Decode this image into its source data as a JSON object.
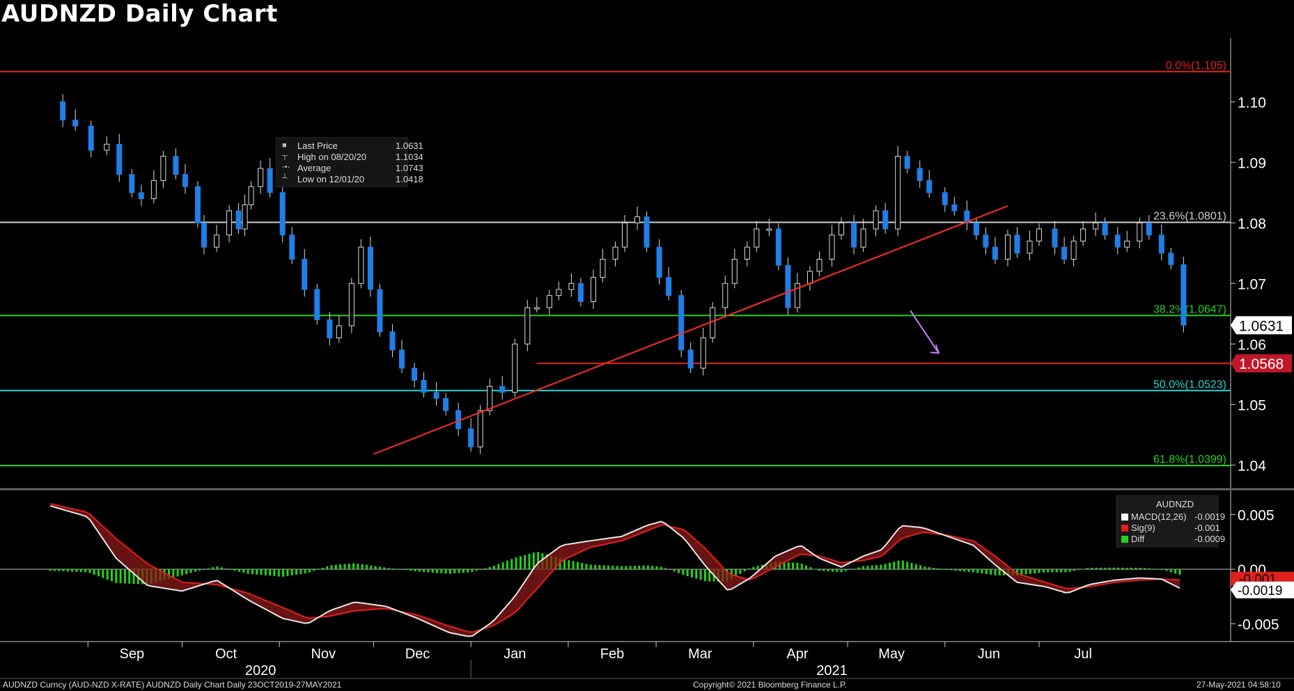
{
  "title": "AUDNZD Daily Chart",
  "chart_data": {
    "type": "candlestick",
    "x_axis": {
      "months": [
        "Sep",
        "Oct",
        "Nov",
        "Dec",
        "Jan",
        "Feb",
        "Mar",
        "Apr",
        "May",
        "Jun",
        "Jul"
      ],
      "years": [
        "2020",
        "2021"
      ]
    },
    "y_axis": {
      "ticks": [
        "1.10",
        "1.09",
        "1.08",
        "1.07",
        "1.06",
        "1.05",
        "1.04"
      ],
      "ylim": [
        1.0375,
        1.1105
      ]
    },
    "fibonacci_levels": [
      {
        "label": "0.0%(1.105)",
        "value": 1.105,
        "color": "#e0201c"
      },
      {
        "label": "23.6%(1.0801)",
        "value": 1.0801,
        "color": "#cfcfcf"
      },
      {
        "label": "38.2%(1.0647)",
        "value": 1.0647,
        "color": "#22d31a"
      },
      {
        "label": "50.0%(1.0523)",
        "value": 1.0523,
        "color": "#1fd6d6"
      },
      {
        "label": "61.8%(1.0399)",
        "value": 1.0399,
        "color": "#22d31a"
      }
    ],
    "support_level": {
      "value": 1.0568,
      "label": "1.0568"
    },
    "last_price": {
      "value": 1.0631,
      "label": "1.0631"
    },
    "trendline": {
      "from": {
        "date": "2020-12-01",
        "value": 1.0418
      },
      "to": {
        "date": "2021-06-21",
        "value": 1.0828
      }
    },
    "projection_arrow": {
      "from": {
        "date": "2021-05-21",
        "value": 1.0655
      },
      "to": {
        "date": "2021-05-30",
        "value": 1.0585
      }
    },
    "legend": [
      {
        "label": "Last Price",
        "value": "1.0631"
      },
      {
        "label": "High on 08/20/20",
        "value": "1.1034"
      },
      {
        "label": "Average",
        "value": "1.0743"
      },
      {
        "label": "Low on 12/01/20",
        "value": "1.0418"
      }
    ],
    "price_path": [
      [
        "2020-08-20",
        1.1
      ],
      [
        "2020-08-24",
        1.097
      ],
      [
        "2020-08-28",
        1.096
      ],
      [
        "2020-09-02",
        1.092
      ],
      [
        "2020-09-07",
        1.093
      ],
      [
        "2020-09-11",
        1.088
      ],
      [
        "2020-09-15",
        1.085
      ],
      [
        "2020-09-18",
        1.084
      ],
      [
        "2020-09-22",
        1.087
      ],
      [
        "2020-09-25",
        1.091
      ],
      [
        "2020-09-29",
        1.088
      ],
      [
        "2020-10-02",
        1.086
      ],
      [
        "2020-10-06",
        1.08
      ],
      [
        "2020-10-08",
        1.076
      ],
      [
        "2020-10-12",
        1.078
      ],
      [
        "2020-10-16",
        1.082
      ],
      [
        "2020-10-19",
        1.079
      ],
      [
        "2020-10-21",
        1.083
      ],
      [
        "2020-10-23",
        1.086
      ],
      [
        "2020-10-26",
        1.089
      ],
      [
        "2020-10-29",
        1.085
      ],
      [
        "2020-11-02",
        1.078
      ],
      [
        "2020-11-05",
        1.074
      ],
      [
        "2020-11-09",
        1.069
      ],
      [
        "2020-11-13",
        1.064
      ],
      [
        "2020-11-17",
        1.061
      ],
      [
        "2020-11-20",
        1.063
      ],
      [
        "2020-11-24",
        1.07
      ],
      [
        "2020-11-27",
        1.076
      ],
      [
        "2020-11-30",
        1.069
      ],
      [
        "2020-12-03",
        1.062
      ],
      [
        "2020-12-07",
        1.059
      ],
      [
        "2020-12-10",
        1.056
      ],
      [
        "2020-12-14",
        1.054
      ],
      [
        "2020-12-17",
        1.052
      ],
      [
        "2020-12-21",
        1.051
      ],
      [
        "2020-12-24",
        1.049
      ],
      [
        "2020-12-28",
        1.046
      ],
      [
        "2021-01-01",
        1.043
      ],
      [
        "2021-01-04",
        1.049
      ],
      [
        "2021-01-07",
        1.053
      ],
      [
        "2021-01-11",
        1.052
      ],
      [
        "2021-01-15",
        1.06
      ],
      [
        "2021-01-19",
        1.066
      ],
      [
        "2021-01-22",
        1.066
      ],
      [
        "2021-01-26",
        1.068
      ],
      [
        "2021-01-29",
        1.069
      ],
      [
        "2021-02-02",
        1.07
      ],
      [
        "2021-02-05",
        1.067
      ],
      [
        "2021-02-09",
        1.071
      ],
      [
        "2021-02-12",
        1.074
      ],
      [
        "2021-02-16",
        1.076
      ],
      [
        "2021-02-19",
        1.08
      ],
      [
        "2021-02-23",
        1.081
      ],
      [
        "2021-02-26",
        1.076
      ],
      [
        "2021-03-02",
        1.071
      ],
      [
        "2021-03-05",
        1.068
      ],
      [
        "2021-03-09",
        1.059
      ],
      [
        "2021-03-12",
        1.056
      ],
      [
        "2021-03-16",
        1.061
      ],
      [
        "2021-03-19",
        1.066
      ],
      [
        "2021-03-23",
        1.07
      ],
      [
        "2021-03-26",
        1.074
      ],
      [
        "2021-03-30",
        1.076
      ],
      [
        "2021-04-02",
        1.079
      ],
      [
        "2021-04-06",
        1.079
      ],
      [
        "2021-04-09",
        1.073
      ],
      [
        "2021-04-12",
        1.066
      ],
      [
        "2021-04-15",
        1.07
      ],
      [
        "2021-04-19",
        1.072
      ],
      [
        "2021-04-22",
        1.074
      ],
      [
        "2021-04-26",
        1.078
      ],
      [
        "2021-04-29",
        1.08
      ],
      [
        "2021-05-03",
        1.076
      ],
      [
        "2021-05-06",
        1.079
      ],
      [
        "2021-05-10",
        1.082
      ],
      [
        "2021-05-13",
        1.079
      ],
      [
        "2021-05-17",
        1.091
      ],
      [
        "2021-05-20",
        1.089
      ],
      [
        "2021-05-24",
        1.087
      ],
      [
        "2021-05-27",
        1.085
      ],
      [
        "2021-06-01",
        1.083
      ],
      [
        "2021-06-04",
        1.082
      ],
      [
        "2021-06-08",
        1.08
      ],
      [
        "2021-06-11",
        1.078
      ],
      [
        "2021-06-14",
        1.076
      ],
      [
        "2021-06-17",
        1.074
      ],
      [
        "2021-06-21",
        1.078
      ],
      [
        "2021-06-24",
        1.075
      ],
      [
        "2021-06-28",
        1.077
      ],
      [
        "2021-07-01",
        1.079
      ],
      [
        "2021-07-06",
        1.076
      ],
      [
        "2021-07-09",
        1.074
      ],
      [
        "2021-07-12",
        1.077
      ],
      [
        "2021-07-15",
        1.079
      ],
      [
        "2021-07-19",
        1.08
      ],
      [
        "2021-07-22",
        1.078
      ],
      [
        "2021-07-26",
        1.076
      ],
      [
        "2021-07-29",
        1.077
      ],
      [
        "2021-08-02",
        1.08
      ],
      [
        "2021-08-05",
        1.078
      ],
      [
        "2021-08-09",
        1.075
      ],
      [
        "2021-08-12",
        1.0731
      ],
      [
        "2021-08-16",
        1.0631
      ]
    ],
    "macd_panel": {
      "ticks": [
        "0.005",
        "0.00",
        "-0.005"
      ],
      "ylim": [
        -0.0065,
        0.0072
      ],
      "legend_title": "AUDNZD",
      "series": [
        {
          "name": "MACD(12,26)",
          "value": "-0.0019",
          "color": "#ffffff"
        },
        {
          "name": "Sig(9)",
          "value": "-0.001",
          "color": "#e0201c"
        },
        {
          "name": "Diff",
          "value": "-0.0009",
          "color": "#22d31a"
        }
      ],
      "badges": [
        "-0.001",
        "-0.0019"
      ],
      "macd_path": [
        [
          "2020-08-20",
          0.0058
        ],
        [
          "2020-09-01",
          0.0048
        ],
        [
          "2020-09-10",
          0.001
        ],
        [
          "2020-09-20",
          -0.0015
        ],
        [
          "2020-10-01",
          -0.002
        ],
        [
          "2020-10-12",
          -0.001
        ],
        [
          "2020-10-22",
          -0.0028
        ],
        [
          "2020-11-02",
          -0.0045
        ],
        [
          "2020-11-10",
          -0.005
        ],
        [
          "2020-11-17",
          -0.0038
        ],
        [
          "2020-11-25",
          -0.003
        ],
        [
          "2020-12-05",
          -0.0034
        ],
        [
          "2020-12-15",
          -0.0045
        ],
        [
          "2020-12-25",
          -0.0058
        ],
        [
          "2021-01-01",
          -0.0062
        ],
        [
          "2021-01-08",
          -0.0048
        ],
        [
          "2021-01-15",
          -0.0025
        ],
        [
          "2021-01-22",
          0.0005
        ],
        [
          "2021-01-30",
          0.0022
        ],
        [
          "2021-02-08",
          0.0026
        ],
        [
          "2021-02-18",
          0.003
        ],
        [
          "2021-02-26",
          0.004
        ],
        [
          "2021-03-03",
          0.0044
        ],
        [
          "2021-03-10",
          0.0028
        ],
        [
          "2021-03-17",
          0.0002
        ],
        [
          "2021-03-24",
          -0.002
        ],
        [
          "2021-03-31",
          -0.0008
        ],
        [
          "2021-04-08",
          0.0012
        ],
        [
          "2021-04-16",
          0.0022
        ],
        [
          "2021-04-22",
          0.001
        ],
        [
          "2021-04-29",
          0.0002
        ],
        [
          "2021-05-06",
          0.0012
        ],
        [
          "2021-05-12",
          0.0018
        ],
        [
          "2021-05-18",
          0.004
        ],
        [
          "2021-05-25",
          0.0038
        ],
        [
          "2021-06-02",
          0.003
        ],
        [
          "2021-06-10",
          0.0022
        ],
        [
          "2021-06-17",
          0.0004
        ],
        [
          "2021-06-24",
          -0.0012
        ],
        [
          "2021-07-03",
          -0.0016
        ],
        [
          "2021-07-10",
          -0.0022
        ],
        [
          "2021-07-17",
          -0.0014
        ],
        [
          "2021-07-25",
          -0.001
        ],
        [
          "2021-08-02",
          -0.0008
        ],
        [
          "2021-08-09",
          -0.0009
        ],
        [
          "2021-08-16",
          -0.0019
        ]
      ],
      "signal_path": [
        [
          "2020-08-20",
          0.006
        ],
        [
          "2020-09-01",
          0.0052
        ],
        [
          "2020-09-10",
          0.0028
        ],
        [
          "2020-09-20",
          0.0005
        ],
        [
          "2020-10-01",
          -0.0012
        ],
        [
          "2020-10-12",
          -0.0014
        ],
        [
          "2020-10-22",
          -0.0022
        ],
        [
          "2020-11-02",
          -0.0035
        ],
        [
          "2020-11-10",
          -0.0045
        ],
        [
          "2020-11-17",
          -0.0043
        ],
        [
          "2020-11-25",
          -0.0038
        ],
        [
          "2020-12-05",
          -0.0036
        ],
        [
          "2020-12-15",
          -0.0042
        ],
        [
          "2020-12-25",
          -0.0052
        ],
        [
          "2021-01-01",
          -0.0058
        ],
        [
          "2021-01-08",
          -0.0052
        ],
        [
          "2021-01-15",
          -0.004
        ],
        [
          "2021-01-22",
          -0.0018
        ],
        [
          "2021-01-30",
          0.0008
        ],
        [
          "2021-02-08",
          0.002
        ],
        [
          "2021-02-18",
          0.0026
        ],
        [
          "2021-02-26",
          0.0035
        ],
        [
          "2021-03-03",
          0.0041
        ],
        [
          "2021-03-10",
          0.0036
        ],
        [
          "2021-03-17",
          0.0018
        ],
        [
          "2021-03-24",
          -0.0004
        ],
        [
          "2021-03-31",
          -0.001
        ],
        [
          "2021-04-08",
          0.0002
        ],
        [
          "2021-04-16",
          0.0014
        ],
        [
          "2021-04-22",
          0.0012
        ],
        [
          "2021-04-29",
          0.0006
        ],
        [
          "2021-05-06",
          0.0008
        ],
        [
          "2021-05-12",
          0.0012
        ],
        [
          "2021-05-18",
          0.0028
        ],
        [
          "2021-05-25",
          0.0034
        ],
        [
          "2021-06-02",
          0.0031
        ],
        [
          "2021-06-10",
          0.0026
        ],
        [
          "2021-06-17",
          0.0012
        ],
        [
          "2021-06-24",
          -0.0004
        ],
        [
          "2021-07-03",
          -0.0012
        ],
        [
          "2021-07-10",
          -0.0018
        ],
        [
          "2021-07-17",
          -0.0016
        ],
        [
          "2021-07-25",
          -0.0012
        ],
        [
          "2021-08-02",
          -0.001
        ],
        [
          "2021-08-09",
          -0.0009
        ],
        [
          "2021-08-16",
          -0.001
        ]
      ]
    }
  },
  "footer": {
    "left": "AUDNZD Curncy (AUD-NZD X-RATE) AUDNZD Daily Chart  Daily 23OCT2019-27MAY2021",
    "center": "Copyright© 2021 Bloomberg Finance L.P.",
    "right": "27-May-2021 04:58:10"
  }
}
